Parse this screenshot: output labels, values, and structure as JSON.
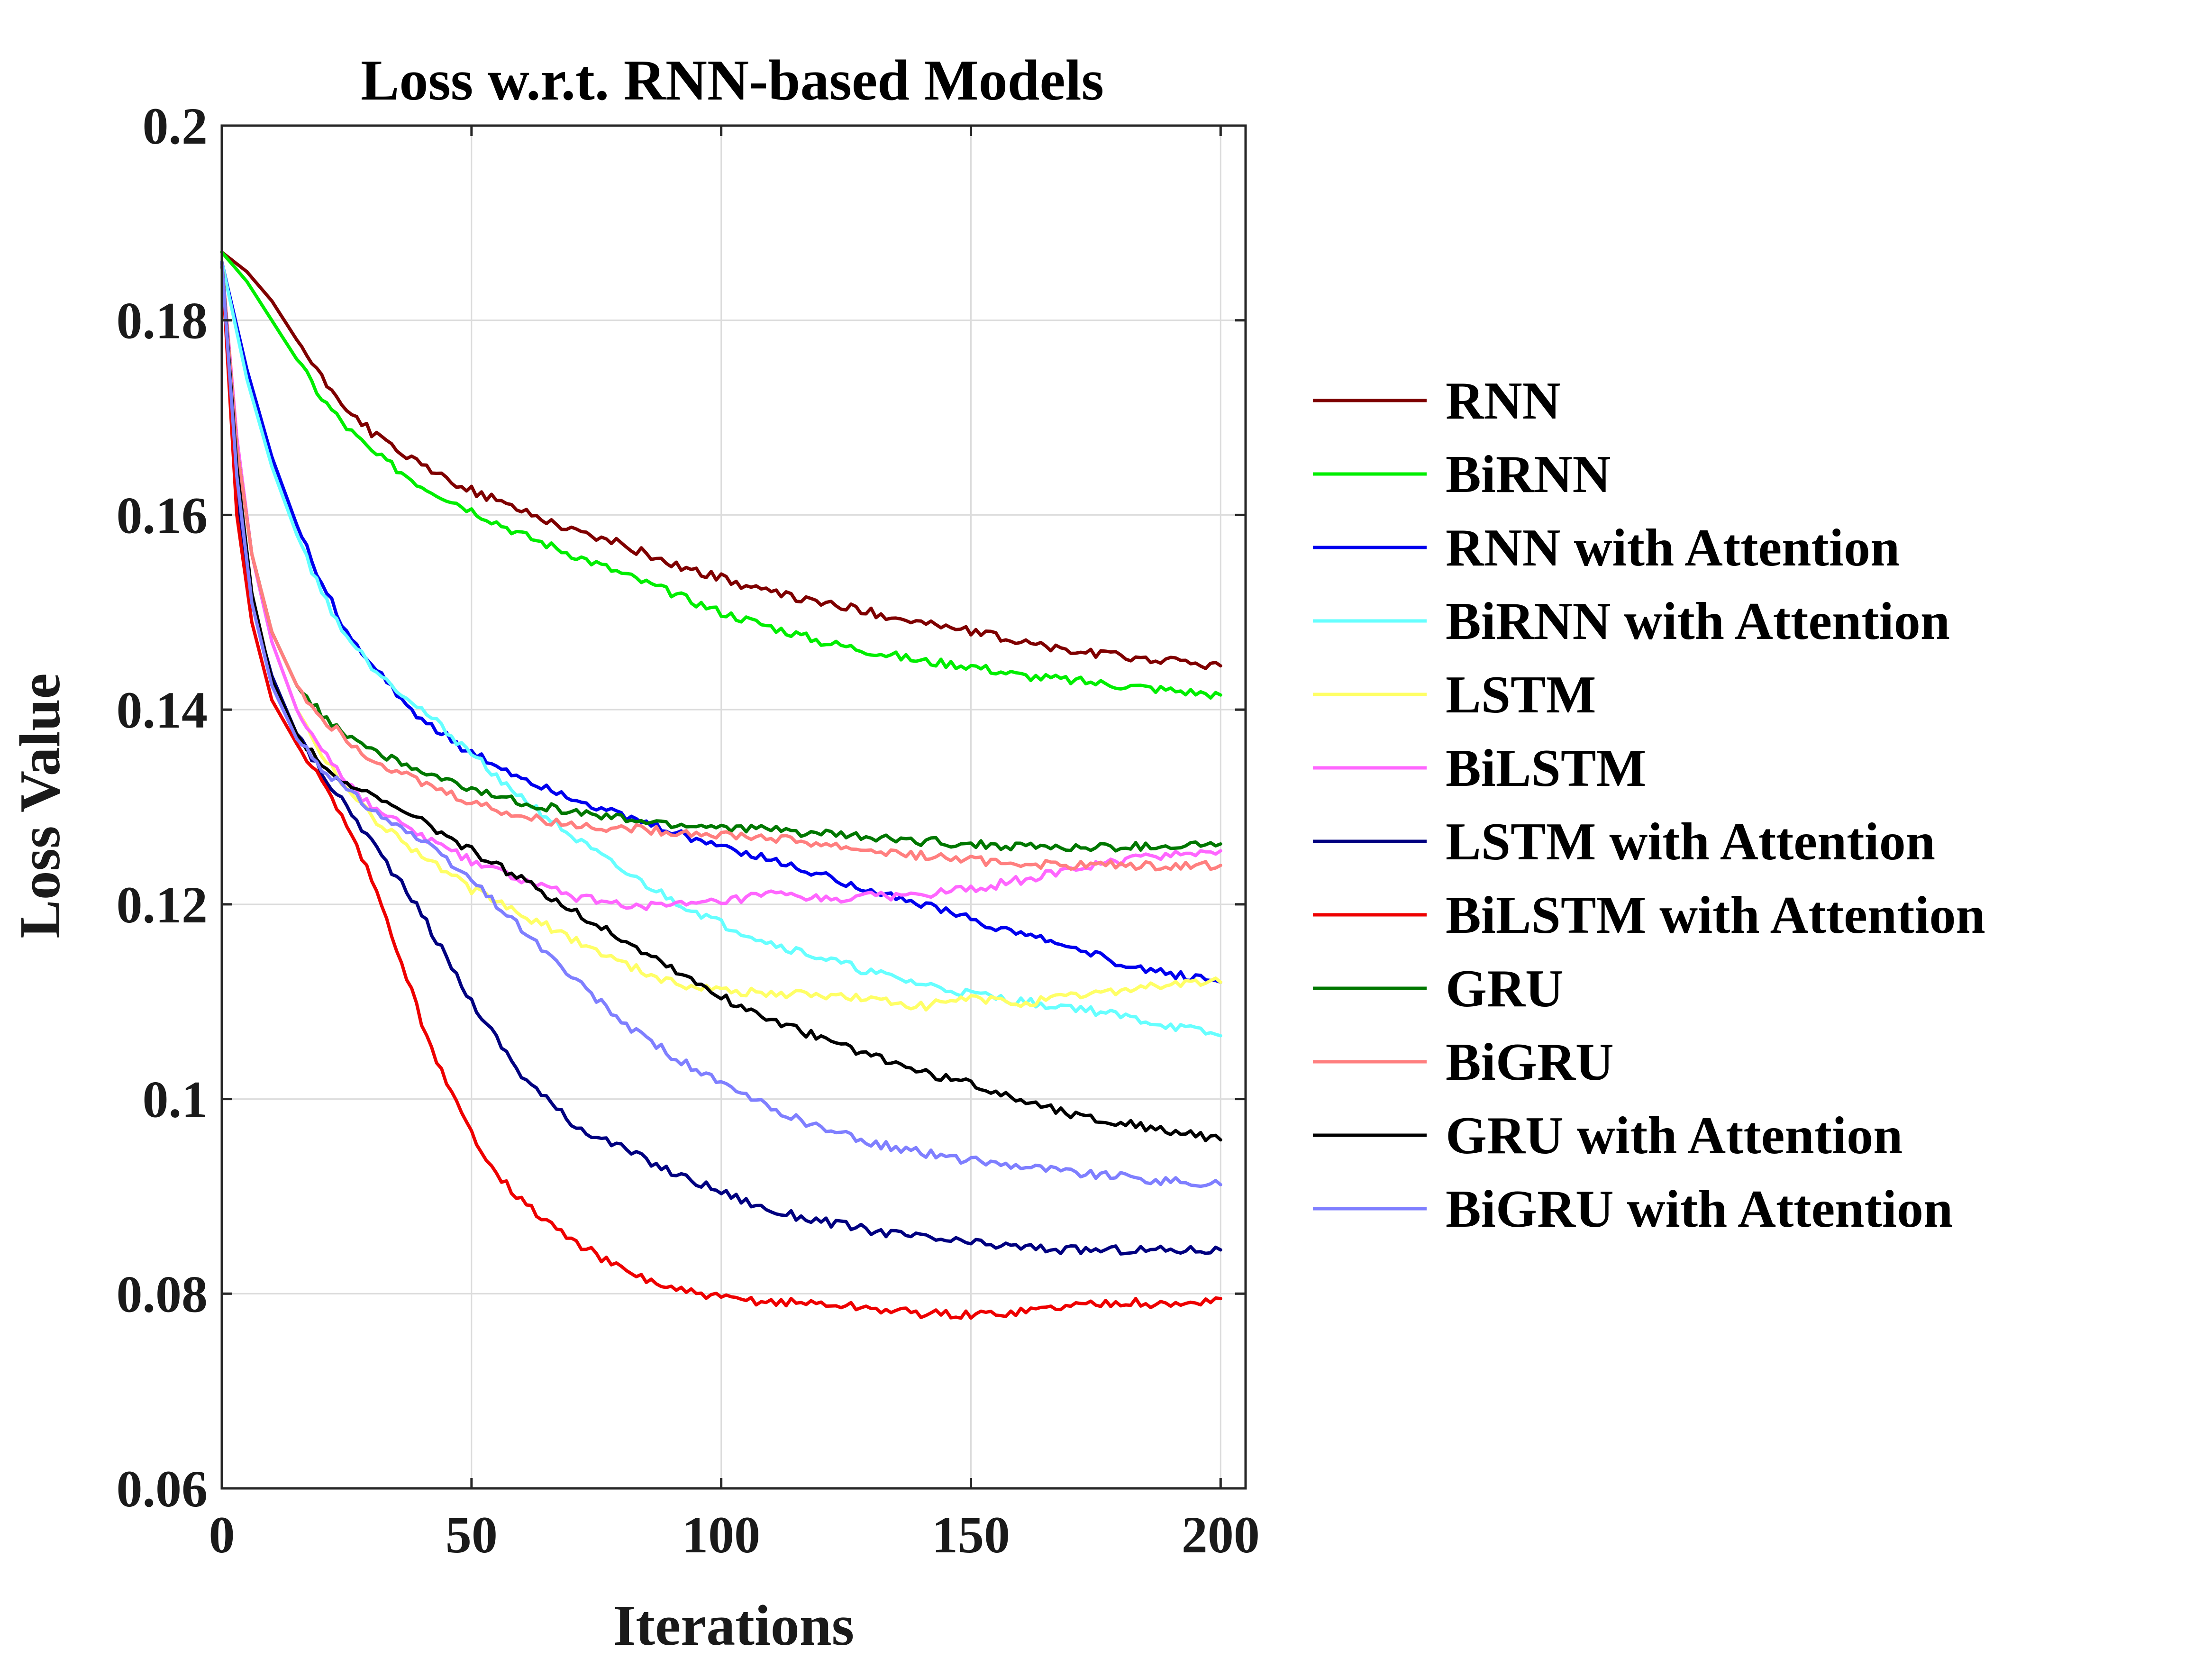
{
  "chart_data": {
    "type": "line",
    "title": "Loss w.r.t. RNN-based Models",
    "xlabel": "Iterations",
    "ylabel": "Loss Value",
    "xlim": [
      0,
      205
    ],
    "ylim": [
      0.06,
      0.2
    ],
    "xticks": [
      0,
      50,
      100,
      150,
      200
    ],
    "xtick_labels": [
      "0",
      "50",
      "100",
      "150",
      "200"
    ],
    "yticks": [
      0.06,
      0.08,
      0.1,
      0.12,
      0.14,
      0.16,
      0.18,
      0.2
    ],
    "ytick_labels": [
      "0.06",
      "0.08",
      "0.1",
      "0.12",
      "0.14",
      "0.16",
      "0.18",
      "0.2"
    ],
    "grid": true,
    "legend_position": "outside-right",
    "series": [
      {
        "name": "RNN",
        "color": "#7f0000",
        "x": [
          0,
          5,
          10,
          15,
          20,
          25,
          30,
          40,
          50,
          60,
          70,
          80,
          90,
          100,
          110,
          120,
          130,
          140,
          150,
          160,
          170,
          180,
          190,
          200
        ],
        "y": [
          0.187,
          0.185,
          0.182,
          0.178,
          0.174,
          0.171,
          0.1685,
          0.165,
          0.1625,
          0.1605,
          0.1585,
          0.157,
          0.155,
          0.1535,
          0.152,
          0.151,
          0.15,
          0.149,
          0.148,
          0.147,
          0.146,
          0.1455,
          0.145,
          0.1445
        ]
      },
      {
        "name": "BiRNN",
        "color": "#00ee00",
        "x": [
          0,
          5,
          10,
          15,
          20,
          25,
          30,
          40,
          50,
          60,
          70,
          80,
          90,
          100,
          110,
          120,
          130,
          140,
          150,
          160,
          170,
          180,
          190,
          200
        ],
        "y": [
          0.187,
          0.184,
          0.18,
          0.176,
          0.172,
          0.169,
          0.1665,
          0.163,
          0.1605,
          0.158,
          0.156,
          0.154,
          0.152,
          0.15,
          0.1485,
          0.147,
          0.146,
          0.145,
          0.1445,
          0.1435,
          0.143,
          0.1425,
          0.142,
          0.1415
        ]
      },
      {
        "name": "RNN with Attention",
        "color": "#0000ee",
        "x": [
          0,
          5,
          10,
          15,
          20,
          25,
          30,
          40,
          50,
          60,
          70,
          80,
          90,
          100,
          110,
          120,
          130,
          140,
          150,
          160,
          170,
          180,
          190,
          200
        ],
        "y": [
          0.186,
          0.175,
          0.166,
          0.159,
          0.153,
          0.148,
          0.1445,
          0.139,
          0.1355,
          0.133,
          0.131,
          0.129,
          0.1275,
          0.126,
          0.1245,
          0.123,
          0.1215,
          0.12,
          0.1185,
          0.117,
          0.1155,
          0.114,
          0.1128,
          0.112
        ]
      },
      {
        "name": "BiRNN with Attention",
        "color": "#66ffff",
        "x": [
          0,
          5,
          10,
          15,
          20,
          25,
          30,
          40,
          50,
          60,
          70,
          80,
          90,
          100,
          110,
          120,
          130,
          140,
          150,
          160,
          170,
          180,
          190,
          200
        ],
        "y": [
          0.186,
          0.174,
          0.165,
          0.158,
          0.152,
          0.1475,
          0.1445,
          0.14,
          0.1355,
          0.131,
          0.127,
          0.1235,
          0.1205,
          0.118,
          0.116,
          0.1145,
          0.113,
          0.1118,
          0.1108,
          0.11,
          0.1095,
          0.1085,
          0.1075,
          0.1065
        ]
      },
      {
        "name": "LSTM",
        "color": "#ffff66",
        "x": [
          0,
          3,
          6,
          10,
          15,
          20,
          25,
          30,
          40,
          50,
          60,
          70,
          80,
          90,
          100,
          110,
          120,
          130,
          140,
          150,
          160,
          170,
          180,
          190,
          200
        ],
        "y": [
          0.186,
          0.168,
          0.156,
          0.147,
          0.14,
          0.1355,
          0.132,
          0.129,
          0.125,
          0.1215,
          0.119,
          0.1165,
          0.114,
          0.112,
          0.1112,
          0.1108,
          0.1108,
          0.1102,
          0.1095,
          0.1103,
          0.1098,
          0.1105,
          0.1112,
          0.1118,
          0.112
        ]
      },
      {
        "name": "BiLSTM",
        "color": "#ff66ff",
        "x": [
          0,
          3,
          6,
          10,
          15,
          20,
          25,
          30,
          40,
          50,
          60,
          70,
          80,
          90,
          100,
          110,
          120,
          130,
          140,
          150,
          160,
          170,
          180,
          190,
          200
        ],
        "y": [
          0.186,
          0.168,
          0.156,
          0.147,
          0.14,
          0.136,
          0.1325,
          0.13,
          0.127,
          0.1245,
          0.1225,
          0.1208,
          0.12,
          0.1198,
          0.1202,
          0.121,
          0.1205,
          0.1208,
          0.121,
          0.1215,
          0.1225,
          0.1235,
          0.1245,
          0.1252,
          0.1255
        ]
      },
      {
        "name": "LSTM with Attention",
        "color": "#000080",
        "x": [
          0,
          3,
          6,
          10,
          15,
          20,
          25,
          30,
          40,
          50,
          60,
          70,
          80,
          90,
          100,
          110,
          120,
          130,
          140,
          150,
          160,
          170,
          180,
          190,
          200
        ],
        "y": [
          0.186,
          0.162,
          0.151,
          0.1435,
          0.1375,
          0.1335,
          0.13,
          0.1265,
          0.119,
          0.11,
          0.1025,
          0.0975,
          0.095,
          0.0925,
          0.0905,
          0.0885,
          0.0875,
          0.0865,
          0.0858,
          0.0852,
          0.0848,
          0.0845,
          0.0845,
          0.0845,
          0.0845
        ]
      },
      {
        "name": "BiLSTM with Attention",
        "color": "#ee0000",
        "x": [
          0,
          3,
          6,
          10,
          15,
          20,
          25,
          30,
          35,
          40,
          45,
          50,
          55,
          60,
          70,
          80,
          90,
          100,
          110,
          120,
          130,
          140,
          150,
          160,
          170,
          180,
          190,
          200
        ],
        "y": [
          0.186,
          0.16,
          0.149,
          0.141,
          0.1365,
          0.1325,
          0.128,
          0.1225,
          0.1155,
          0.108,
          0.1015,
          0.0965,
          0.0925,
          0.0895,
          0.0855,
          0.0825,
          0.0805,
          0.0795,
          0.0792,
          0.079,
          0.0785,
          0.078,
          0.0778,
          0.0782,
          0.0788,
          0.0792,
          0.0788,
          0.0795
        ]
      },
      {
        "name": "GRU",
        "color": "#007700",
        "x": [
          0,
          3,
          6,
          10,
          15,
          20,
          25,
          30,
          40,
          50,
          60,
          70,
          80,
          90,
          100,
          110,
          120,
          130,
          140,
          150,
          160,
          170,
          180,
          190,
          200
        ],
        "y": [
          0.186,
          0.167,
          0.156,
          0.148,
          0.1425,
          0.1395,
          0.1375,
          0.136,
          0.1335,
          0.1318,
          0.1305,
          0.1295,
          0.1288,
          0.1282,
          0.128,
          0.1276,
          0.1272,
          0.1268,
          0.1265,
          0.1262,
          0.126,
          0.1258,
          0.1259,
          0.126,
          0.1262
        ]
      },
      {
        "name": "BiGRU",
        "color": "#ff7f7f",
        "x": [
          0,
          3,
          6,
          10,
          15,
          20,
          25,
          30,
          40,
          50,
          60,
          70,
          80,
          90,
          100,
          110,
          120,
          130,
          140,
          150,
          160,
          170,
          180,
          190,
          200
        ],
        "y": [
          0.186,
          0.167,
          0.156,
          0.148,
          0.1425,
          0.1392,
          0.137,
          0.135,
          0.1325,
          0.1305,
          0.129,
          0.1282,
          0.1278,
          0.1275,
          0.1272,
          0.1268,
          0.1262,
          0.1255,
          0.125,
          0.1245,
          0.1242,
          0.124,
          0.124,
          0.124,
          0.124
        ]
      },
      {
        "name": "GRU with Attention",
        "color": "#000000",
        "x": [
          0,
          3,
          6,
          10,
          15,
          20,
          25,
          30,
          40,
          50,
          60,
          70,
          80,
          90,
          100,
          110,
          120,
          130,
          140,
          150,
          160,
          170,
          180,
          190,
          200
        ],
        "y": [
          0.186,
          0.165,
          0.152,
          0.143,
          0.1375,
          0.1345,
          0.1325,
          0.131,
          0.1285,
          0.1255,
          0.1225,
          0.1195,
          0.1165,
          0.1135,
          0.1105,
          0.1082,
          0.1062,
          0.1045,
          0.1028,
          0.1015,
          0.1,
          0.0985,
          0.0975,
          0.0968,
          0.0958
        ]
      },
      {
        "name": "BiGRU with Attention",
        "color": "#7f7fff",
        "x": [
          0,
          3,
          6,
          10,
          15,
          20,
          25,
          30,
          40,
          50,
          60,
          70,
          80,
          90,
          100,
          110,
          120,
          130,
          140,
          150,
          160,
          170,
          180,
          190,
          200
        ],
        "y": [
          0.186,
          0.164,
          0.151,
          0.1425,
          0.137,
          0.134,
          0.1318,
          0.1298,
          0.1265,
          0.1225,
          0.1175,
          0.1125,
          0.108,
          0.1045,
          0.1015,
          0.099,
          0.097,
          0.0955,
          0.0945,
          0.0937,
          0.0932,
          0.0925,
          0.092,
          0.0915,
          0.0912
        ]
      }
    ]
  }
}
